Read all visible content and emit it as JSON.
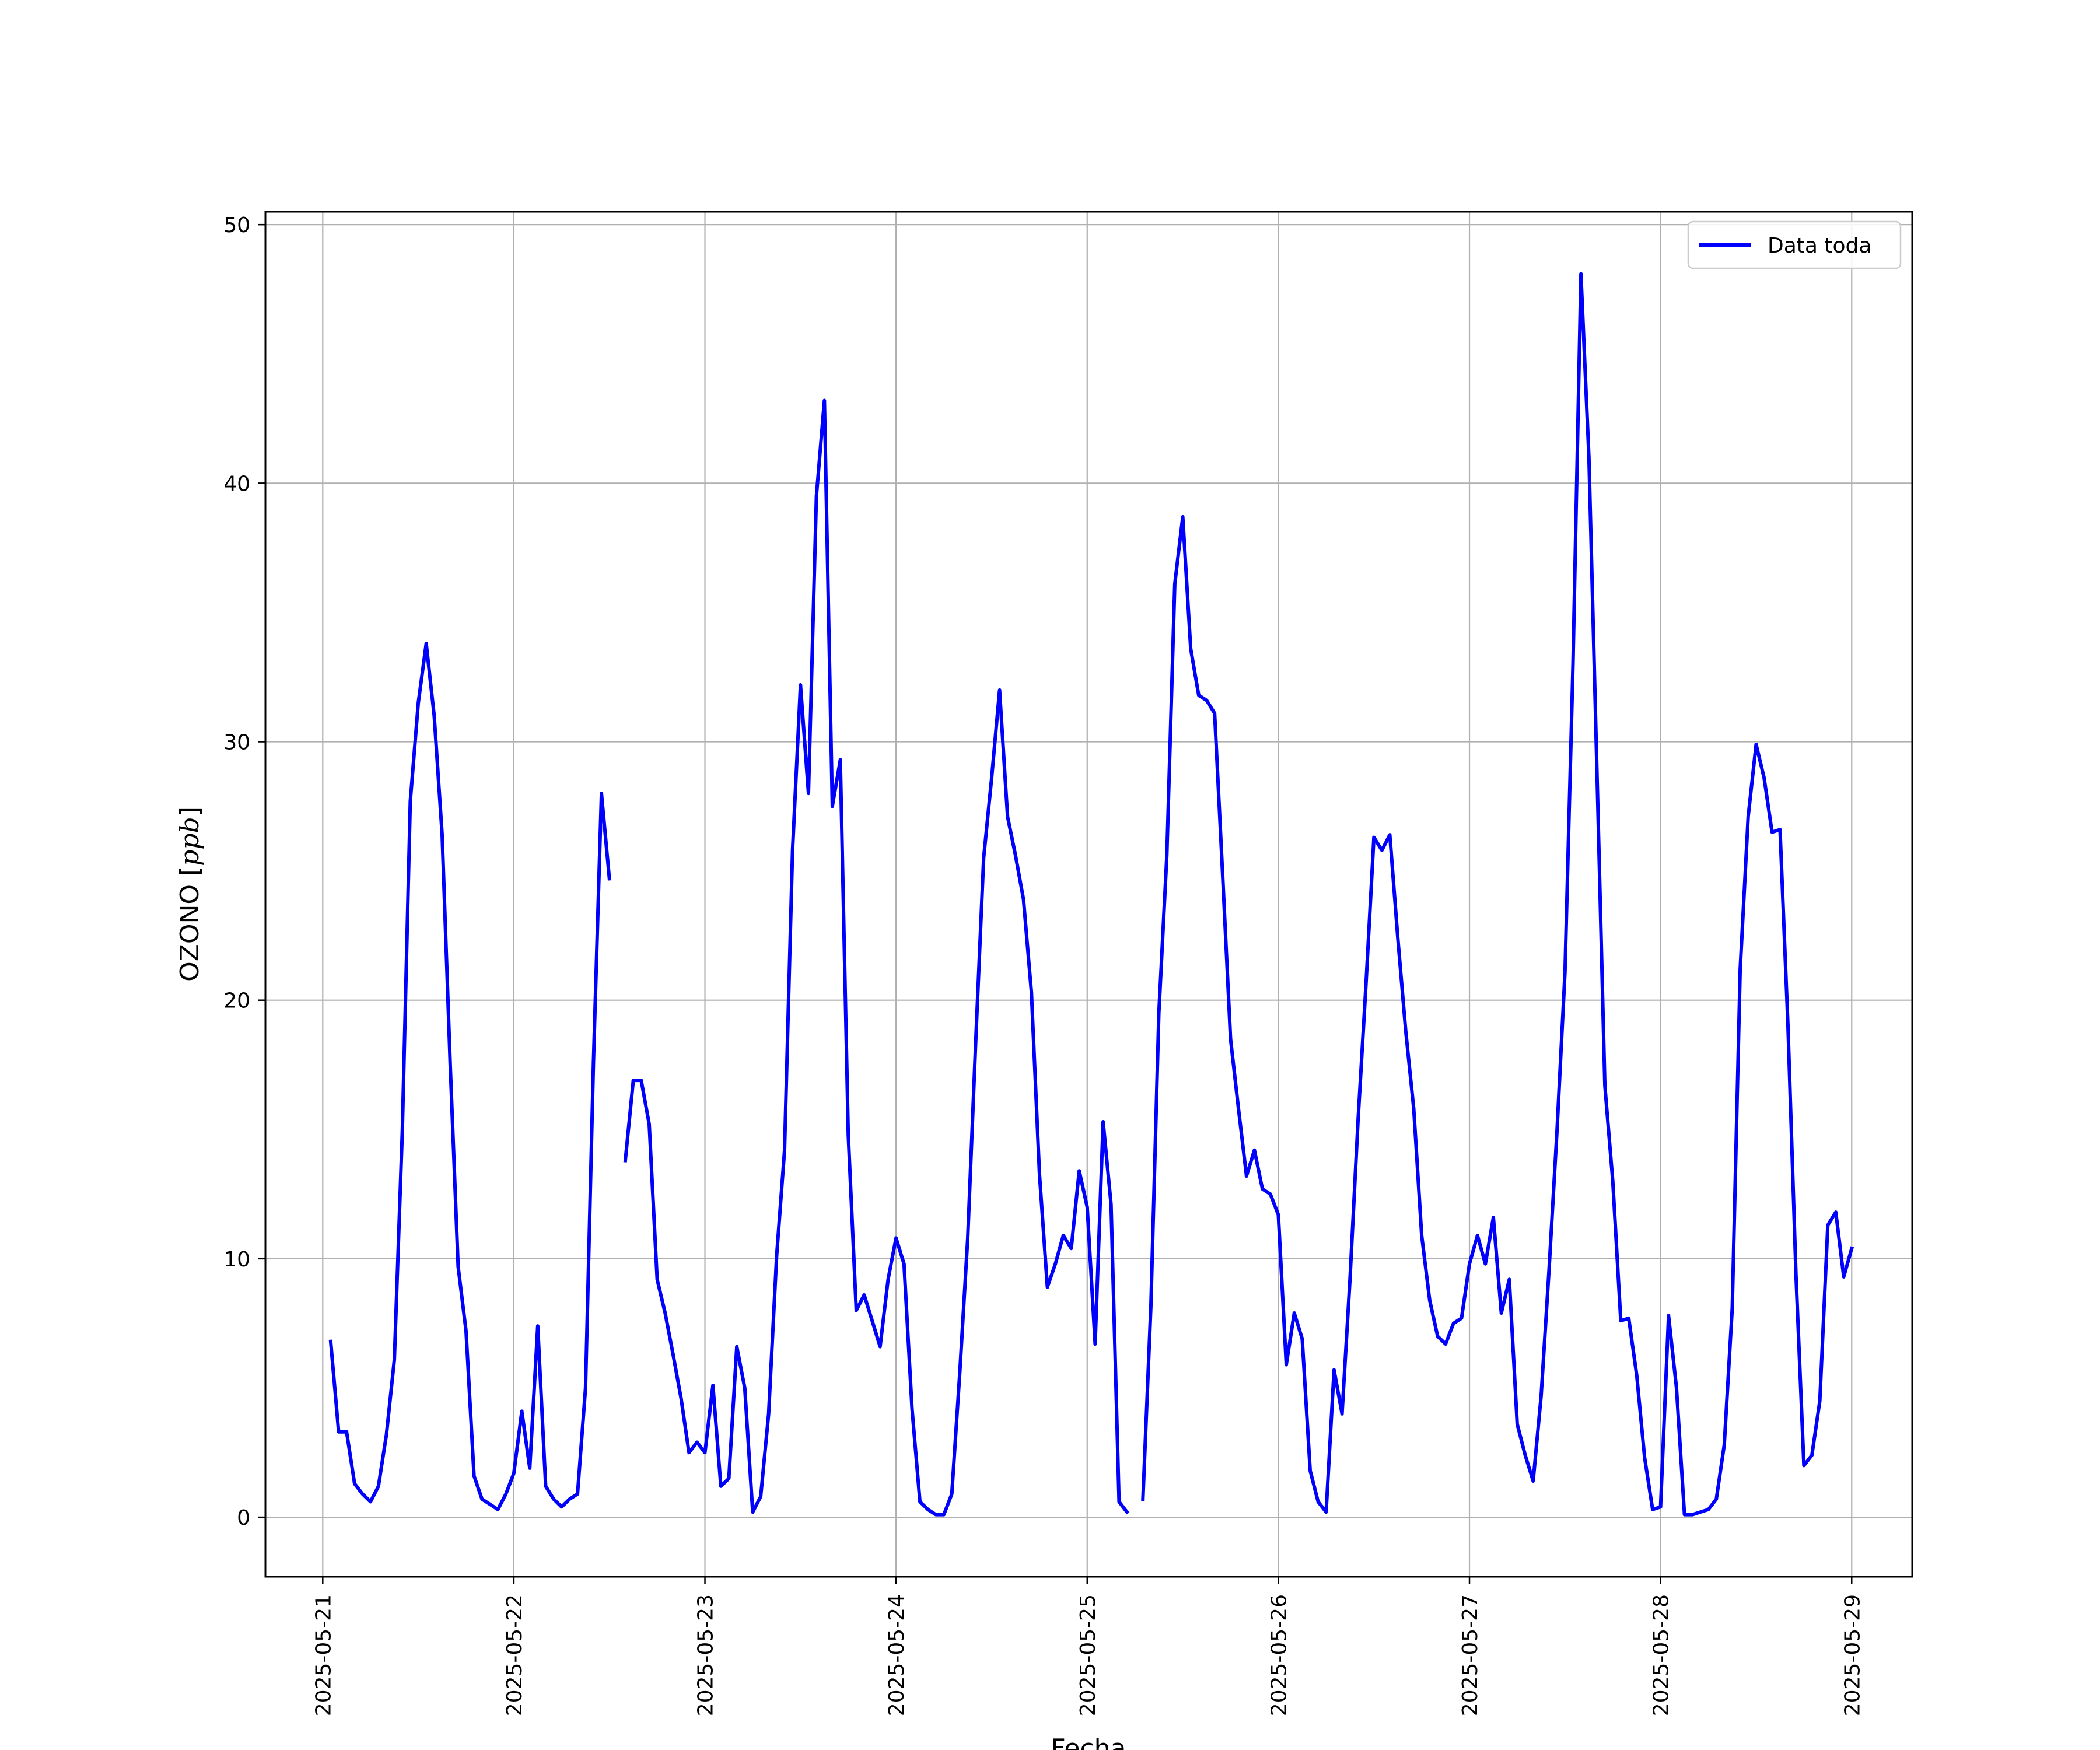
{
  "chart_data": {
    "type": "line",
    "title": "",
    "xlabel": "Fecha",
    "ylabel": "OZONO",
    "ylabel_unit": "ppb",
    "xlim": [
      "2025-05-20 16:48",
      "2025-05-29 07:36"
    ],
    "ylim": [
      -2.3,
      50.5
    ],
    "x_ticks": [
      "2025-05-21",
      "2025-05-22",
      "2025-05-23",
      "2025-05-24",
      "2025-05-25",
      "2025-05-26",
      "2025-05-27",
      "2025-05-28",
      "2025-05-29"
    ],
    "y_ticks": [
      0,
      10,
      20,
      30,
      40,
      50
    ],
    "grid": true,
    "legend_position": "top-right",
    "series": [
      {
        "name": "Data toda",
        "color": "#0000ff",
        "segments": [
          [
            [
              "2025-05-21 01:00",
              6.8
            ],
            [
              "2025-05-21 02:00",
              3.3
            ],
            [
              "2025-05-21 03:00",
              3.3
            ],
            [
              "2025-05-21 04:00",
              1.3
            ],
            [
              "2025-05-21 05:00",
              0.9
            ],
            [
              "2025-05-21 06:00",
              0.6
            ],
            [
              "2025-05-21 07:00",
              1.2
            ],
            [
              "2025-05-21 08:00",
              3.2
            ],
            [
              "2025-05-21 09:00",
              6.1
            ],
            [
              "2025-05-21 10:00",
              15.0
            ],
            [
              "2025-05-21 11:00",
              27.7
            ],
            [
              "2025-05-21 12:00",
              31.5
            ],
            [
              "2025-05-21 13:00",
              33.8
            ],
            [
              "2025-05-21 14:00",
              31.0
            ],
            [
              "2025-05-21 15:00",
              26.4
            ],
            [
              "2025-05-21 16:00",
              17.6
            ],
            [
              "2025-05-21 17:00",
              9.7
            ],
            [
              "2025-05-21 18:00",
              7.2
            ],
            [
              "2025-05-21 19:00",
              1.6
            ],
            [
              "2025-05-21 20:00",
              0.7
            ],
            [
              "2025-05-21 21:00",
              0.5
            ],
            [
              "2025-05-21 22:00",
              0.3
            ],
            [
              "2025-05-21 23:00",
              0.9
            ],
            [
              "2025-05-22 00:00",
              1.7
            ],
            [
              "2025-05-22 01:00",
              4.1
            ],
            [
              "2025-05-22 02:00",
              1.9
            ],
            [
              "2025-05-22 03:00",
              7.4
            ],
            [
              "2025-05-22 04:00",
              1.2
            ],
            [
              "2025-05-22 05:00",
              0.7
            ],
            [
              "2025-05-22 06:00",
              0.4
            ],
            [
              "2025-05-22 07:00",
              0.7
            ],
            [
              "2025-05-22 08:00",
              0.9
            ],
            [
              "2025-05-22 09:00",
              5.0
            ],
            [
              "2025-05-22 10:00",
              17.6
            ],
            [
              "2025-05-22 11:00",
              28.0
            ],
            [
              "2025-05-22 12:00",
              24.7
            ]
          ],
          [
            [
              "2025-05-22 14:00",
              13.8
            ],
            [
              "2025-05-22 15:00",
              16.9
            ],
            [
              "2025-05-22 16:00",
              16.9
            ],
            [
              "2025-05-22 17:00",
              15.2
            ],
            [
              "2025-05-22 18:00",
              9.2
            ],
            [
              "2025-05-22 19:00",
              7.9
            ],
            [
              "2025-05-22 20:00",
              6.3
            ],
            [
              "2025-05-22 21:00",
              4.6
            ],
            [
              "2025-05-22 22:00",
              2.5
            ],
            [
              "2025-05-22 23:00",
              2.9
            ],
            [
              "2025-05-23 00:00",
              2.5
            ],
            [
              "2025-05-23 01:00",
              5.1
            ],
            [
              "2025-05-23 02:00",
              1.2
            ],
            [
              "2025-05-23 03:00",
              1.5
            ],
            [
              "2025-05-23 04:00",
              6.6
            ],
            [
              "2025-05-23 05:00",
              5.0
            ],
            [
              "2025-05-23 06:00",
              0.2
            ],
            [
              "2025-05-23 07:00",
              0.8
            ],
            [
              "2025-05-23 08:00",
              4.0
            ],
            [
              "2025-05-23 09:00",
              10.1
            ],
            [
              "2025-05-23 10:00",
              14.2
            ],
            [
              "2025-05-23 11:00",
              25.8
            ],
            [
              "2025-05-23 12:00",
              32.2
            ],
            [
              "2025-05-23 13:00",
              28.0
            ],
            [
              "2025-05-23 14:00",
              39.5
            ],
            [
              "2025-05-23 15:00",
              43.2
            ],
            [
              "2025-05-23 16:00",
              27.5
            ],
            [
              "2025-05-23 17:00",
              29.3
            ],
            [
              "2025-05-23 18:00",
              14.8
            ],
            [
              "2025-05-23 19:00",
              8.0
            ],
            [
              "2025-05-23 20:00",
              8.6
            ],
            [
              "2025-05-23 21:00",
              7.6
            ],
            [
              "2025-05-23 22:00",
              6.6
            ],
            [
              "2025-05-23 23:00",
              9.2
            ],
            [
              "2025-05-24 00:00",
              10.8
            ],
            [
              "2025-05-24 01:00",
              9.8
            ],
            [
              "2025-05-24 02:00",
              4.2
            ],
            [
              "2025-05-24 03:00",
              0.6
            ],
            [
              "2025-05-24 04:00",
              0.3
            ],
            [
              "2025-05-24 05:00",
              0.1
            ],
            [
              "2025-05-24 06:00",
              0.1
            ],
            [
              "2025-05-24 07:00",
              0.9
            ],
            [
              "2025-05-24 08:00",
              5.6
            ],
            [
              "2025-05-24 09:00",
              10.8
            ],
            [
              "2025-05-24 10:00",
              18.4
            ],
            [
              "2025-05-24 11:00",
              25.5
            ],
            [
              "2025-05-24 12:00",
              28.6
            ],
            [
              "2025-05-24 13:00",
              32.0
            ],
            [
              "2025-05-24 14:00",
              27.1
            ],
            [
              "2025-05-24 15:00",
              25.6
            ],
            [
              "2025-05-24 16:00",
              23.9
            ],
            [
              "2025-05-24 17:00",
              20.3
            ],
            [
              "2025-05-24 18:00",
              13.3
            ],
            [
              "2025-05-24 19:00",
              8.9
            ],
            [
              "2025-05-24 20:00",
              9.8
            ],
            [
              "2025-05-24 21:00",
              10.9
            ],
            [
              "2025-05-24 22:00",
              10.4
            ],
            [
              "2025-05-24 23:00",
              13.4
            ],
            [
              "2025-05-25 00:00",
              12.0
            ],
            [
              "2025-05-25 01:00",
              6.7
            ],
            [
              "2025-05-25 02:00",
              15.3
            ],
            [
              "2025-05-25 03:00",
              12.1
            ],
            [
              "2025-05-25 04:00",
              0.6
            ],
            [
              "2025-05-25 05:00",
              0.2
            ]
          ],
          [
            [
              "2025-05-25 07:00",
              0.7
            ],
            [
              "2025-05-25 08:00",
              8.2
            ],
            [
              "2025-05-25 09:00",
              19.5
            ],
            [
              "2025-05-25 10:00",
              25.6
            ],
            [
              "2025-05-25 11:00",
              36.1
            ],
            [
              "2025-05-25 12:00",
              38.7
            ],
            [
              "2025-05-25 13:00",
              33.6
            ],
            [
              "2025-05-25 14:00",
              31.8
            ],
            [
              "2025-05-25 15:00",
              31.6
            ],
            [
              "2025-05-25 16:00",
              31.1
            ],
            [
              "2025-05-25 17:00",
              24.9
            ],
            [
              "2025-05-25 18:00",
              18.5
            ],
            [
              "2025-05-25 19:00",
              15.8
            ],
            [
              "2025-05-25 20:00",
              13.2
            ],
            [
              "2025-05-25 21:00",
              14.2
            ],
            [
              "2025-05-25 22:00",
              12.7
            ],
            [
              "2025-05-25 23:00",
              12.5
            ],
            [
              "2025-05-26 00:00",
              11.7
            ],
            [
              "2025-05-26 01:00",
              5.9
            ],
            [
              "2025-05-26 02:00",
              7.9
            ],
            [
              "2025-05-26 03:00",
              6.9
            ],
            [
              "2025-05-26 04:00",
              1.8
            ],
            [
              "2025-05-26 05:00",
              0.6
            ],
            [
              "2025-05-26 06:00",
              0.2
            ],
            [
              "2025-05-26 07:00",
              5.7
            ],
            [
              "2025-05-26 08:00",
              4.0
            ],
            [
              "2025-05-26 09:00",
              9.2
            ],
            [
              "2025-05-26 10:00",
              15.3
            ],
            [
              "2025-05-26 11:00",
              20.6
            ],
            [
              "2025-05-26 12:00",
              26.3
            ],
            [
              "2025-05-26 13:00",
              25.8
            ],
            [
              "2025-05-26 14:00",
              26.4
            ],
            [
              "2025-05-26 15:00",
              22.4
            ],
            [
              "2025-05-26 16:00",
              18.8
            ],
            [
              "2025-05-26 17:00",
              15.8
            ],
            [
              "2025-05-26 18:00",
              10.9
            ],
            [
              "2025-05-26 19:00",
              8.4
            ],
            [
              "2025-05-26 20:00",
              7.0
            ],
            [
              "2025-05-26 21:00",
              6.7
            ],
            [
              "2025-05-26 22:00",
              7.5
            ],
            [
              "2025-05-26 23:00",
              7.7
            ],
            [
              "2025-05-27 00:00",
              9.8
            ],
            [
              "2025-05-27 01:00",
              10.9
            ],
            [
              "2025-05-27 02:00",
              9.8
            ],
            [
              "2025-05-27 03:00",
              11.6
            ],
            [
              "2025-05-27 04:00",
              7.9
            ],
            [
              "2025-05-27 05:00",
              9.2
            ],
            [
              "2025-05-27 06:00",
              3.6
            ],
            [
              "2025-05-27 07:00",
              2.4
            ],
            [
              "2025-05-27 08:00",
              1.4
            ],
            [
              "2025-05-27 09:00",
              4.7
            ],
            [
              "2025-05-27 10:00",
              9.6
            ],
            [
              "2025-05-27 11:00",
              15.0
            ],
            [
              "2025-05-27 12:00",
              21.1
            ],
            [
              "2025-05-27 13:00",
              33.0
            ],
            [
              "2025-05-27 14:00",
              48.1
            ],
            [
              "2025-05-27 15:00",
              41.0
            ],
            [
              "2025-05-27 16:00",
              29.0
            ],
            [
              "2025-05-27 17:00",
              16.7
            ],
            [
              "2025-05-27 18:00",
              13.0
            ],
            [
              "2025-05-27 19:00",
              7.6
            ],
            [
              "2025-05-27 20:00",
              7.7
            ],
            [
              "2025-05-27 21:00",
              5.5
            ],
            [
              "2025-05-27 22:00",
              2.3
            ],
            [
              "2025-05-27 23:00",
              0.3
            ],
            [
              "2025-05-28 00:00",
              0.4
            ],
            [
              "2025-05-28 01:00",
              7.8
            ],
            [
              "2025-05-28 02:00",
              5.0
            ],
            [
              "2025-05-28 03:00",
              0.1
            ],
            [
              "2025-05-28 04:00",
              0.1
            ],
            [
              "2025-05-28 05:00",
              0.2
            ],
            [
              "2025-05-28 06:00",
              0.3
            ],
            [
              "2025-05-28 07:00",
              0.7
            ],
            [
              "2025-05-28 08:00",
              2.8
            ],
            [
              "2025-05-28 09:00",
              8.1
            ],
            [
              "2025-05-28 10:00",
              21.2
            ],
            [
              "2025-05-28 11:00",
              27.1
            ],
            [
              "2025-05-28 12:00",
              29.9
            ],
            [
              "2025-05-28 13:00",
              28.6
            ],
            [
              "2025-05-28 14:00",
              26.5
            ],
            [
              "2025-05-28 15:00",
              26.6
            ],
            [
              "2025-05-28 16:00",
              19.0
            ],
            [
              "2025-05-28 17:00",
              9.4
            ],
            [
              "2025-05-28 18:00",
              2.0
            ],
            [
              "2025-05-28 19:00",
              2.4
            ],
            [
              "2025-05-28 20:00",
              4.5
            ],
            [
              "2025-05-28 21:00",
              11.3
            ],
            [
              "2025-05-28 22:00",
              11.8
            ],
            [
              "2025-05-28 23:00",
              9.3
            ],
            [
              "2025-05-29 00:00",
              10.4
            ]
          ]
        ]
      }
    ]
  }
}
